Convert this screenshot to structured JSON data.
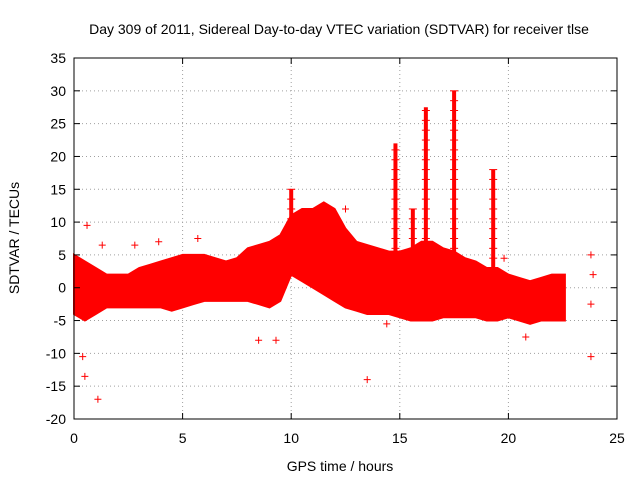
{
  "chart_data": {
    "type": "scatter",
    "title": "Day 309 of 2011, Sidereal Day-to-day VTEC variation (SDTVAR) for receiver tlse",
    "xlabel": "GPS time / hours",
    "ylabel": "SDTVAR / TECUs",
    "xlim": [
      0,
      25
    ],
    "ylim": [
      -20,
      35
    ],
    "xticks": [
      0,
      5,
      10,
      15,
      20,
      25
    ],
    "xtick_labels": [
      "0",
      "5",
      "10",
      "15",
      "20",
      "25"
    ],
    "yticks": [
      -20,
      -15,
      -10,
      -5,
      0,
      5,
      10,
      15,
      20,
      25,
      30,
      35
    ],
    "ytick_labels": [
      "-20",
      "-15",
      "-10",
      "-5",
      "0",
      "5",
      "10",
      "15",
      "20",
      "25",
      "30",
      "35"
    ],
    "grid": true,
    "marker": "+",
    "color": "#ff0000",
    "band": {
      "x": [
        0.0,
        0.5,
        1.0,
        1.5,
        2.0,
        2.5,
        3.0,
        3.5,
        4.0,
        4.5,
        5.0,
        5.5,
        6.0,
        6.5,
        7.0,
        7.5,
        8.0,
        8.5,
        9.0,
        9.5,
        10.0,
        10.5,
        11.0,
        11.5,
        12.0,
        12.5,
        13.0,
        13.5,
        14.0,
        14.5,
        15.0,
        15.5,
        16.0,
        16.5,
        17.0,
        17.5,
        18.0,
        18.5,
        19.0,
        19.5,
        20.0,
        20.5,
        21.0,
        21.5,
        22.0,
        22.6
      ],
      "upper": [
        5.0,
        4.0,
        3.0,
        2.0,
        2.0,
        2.0,
        3.0,
        3.5,
        4.0,
        4.5,
        5.0,
        5.0,
        5.0,
        4.5,
        4.0,
        4.5,
        6.0,
        6.5,
        7.0,
        8.0,
        11.0,
        12.0,
        12.0,
        13.0,
        12.0,
        9.0,
        7.0,
        6.5,
        6.0,
        5.5,
        5.5,
        6.0,
        7.0,
        7.0,
        6.0,
        5.5,
        4.5,
        4.0,
        3.0,
        3.0,
        2.0,
        1.5,
        1.0,
        1.5,
        2.0,
        2.0
      ],
      "lower": [
        -4.0,
        -5.0,
        -4.0,
        -3.0,
        -3.0,
        -3.0,
        -3.0,
        -3.0,
        -3.0,
        -3.5,
        -3.0,
        -2.5,
        -2.0,
        -2.0,
        -2.0,
        -2.0,
        -2.0,
        -2.5,
        -3.0,
        -2.0,
        2.0,
        1.0,
        0.0,
        -1.0,
        -2.0,
        -3.0,
        -3.5,
        -4.0,
        -4.0,
        -4.0,
        -4.5,
        -5.0,
        -5.0,
        -5.0,
        -4.5,
        -4.5,
        -4.5,
        -4.5,
        -5.0,
        -5.0,
        -4.5,
        -5.0,
        -5.5,
        -5.0,
        -5.0,
        -5.0
      ]
    },
    "spikes": [
      {
        "x": 14.8,
        "peak": 22.0
      },
      {
        "x": 15.6,
        "peak": 12.0
      },
      {
        "x": 16.2,
        "peak": 27.5
      },
      {
        "x": 17.5,
        "peak": 30.0
      },
      {
        "x": 19.3,
        "peak": 18.0
      },
      {
        "x": 10.0,
        "peak": 15.0
      }
    ],
    "outliers": [
      {
        "x": 0.4,
        "y": -10.5
      },
      {
        "x": 0.5,
        "y": -13.5
      },
      {
        "x": 1.1,
        "y": -17.0
      },
      {
        "x": 0.6,
        "y": 9.5
      },
      {
        "x": 1.3,
        "y": 6.5
      },
      {
        "x": 2.8,
        "y": 6.5
      },
      {
        "x": 3.9,
        "y": 7.0
      },
      {
        "x": 5.7,
        "y": 7.5
      },
      {
        "x": 8.5,
        "y": -8.0
      },
      {
        "x": 9.3,
        "y": -8.0
      },
      {
        "x": 12.5,
        "y": 12.0
      },
      {
        "x": 13.5,
        "y": -14.0
      },
      {
        "x": 14.4,
        "y": -5.5
      },
      {
        "x": 19.8,
        "y": 4.5
      },
      {
        "x": 20.8,
        "y": -7.5
      },
      {
        "x": 23.8,
        "y": 5.0
      },
      {
        "x": 23.8,
        "y": -10.5
      },
      {
        "x": 23.9,
        "y": 2.0
      },
      {
        "x": 23.8,
        "y": -2.5
      }
    ]
  }
}
